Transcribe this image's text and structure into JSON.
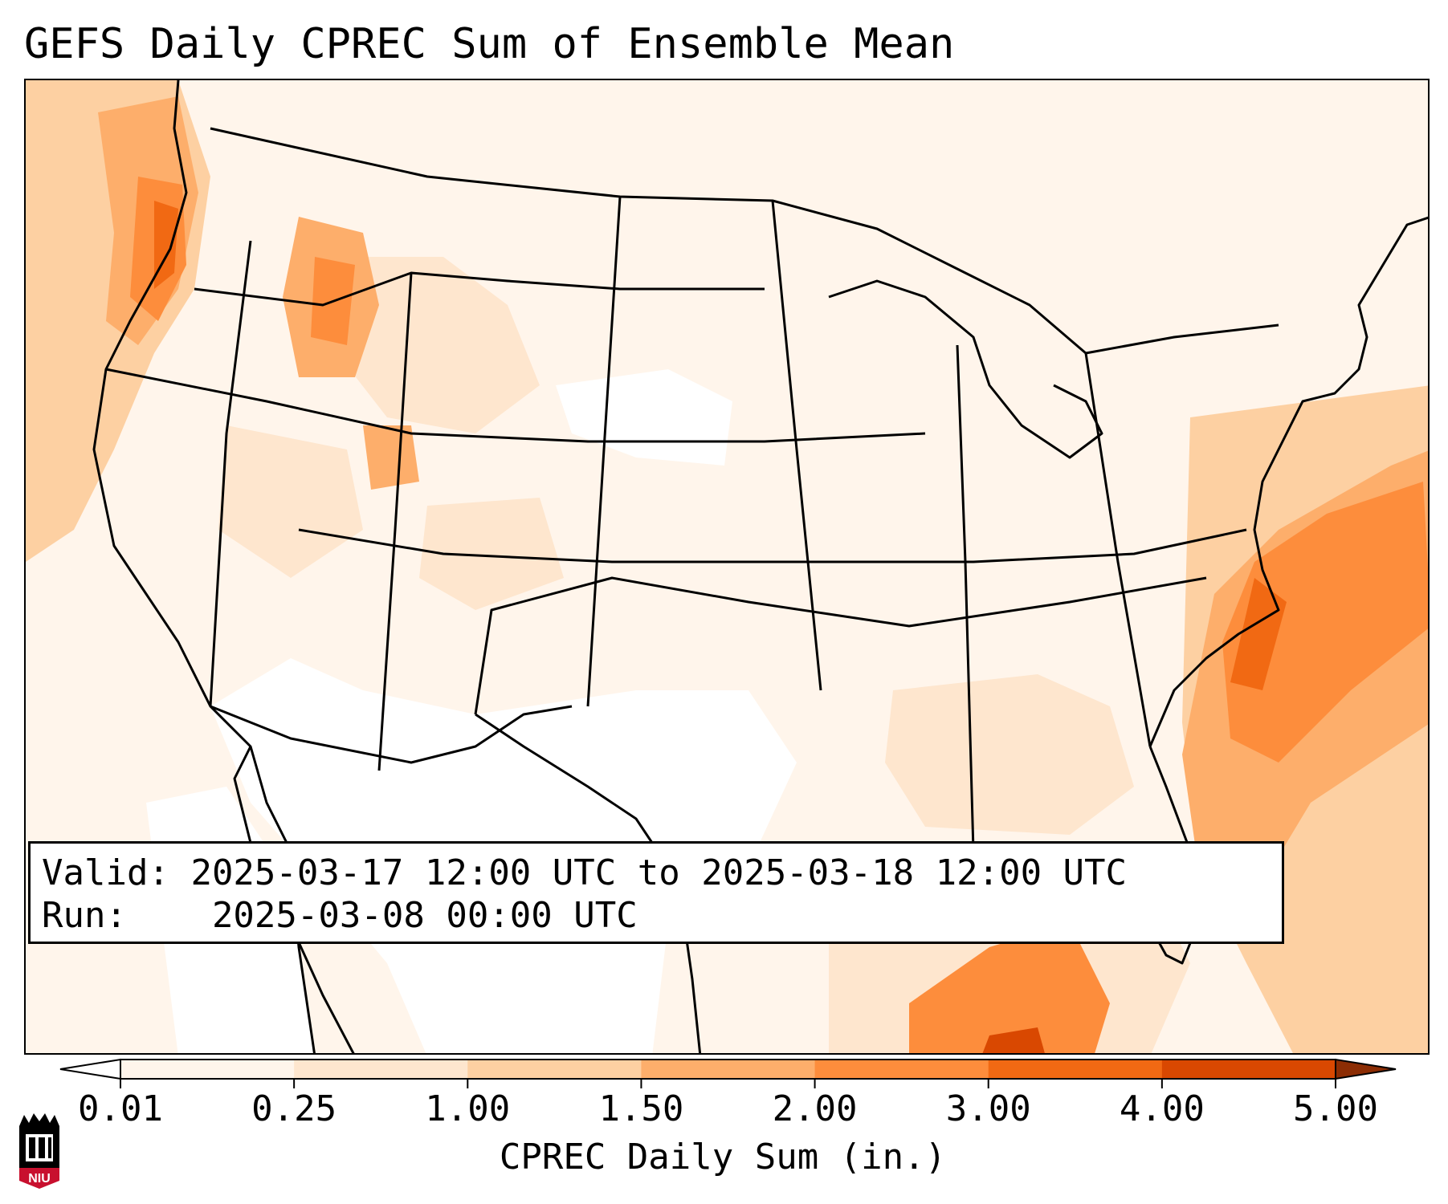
{
  "title": "GEFS Daily CPREC Sum of Ensemble Mean",
  "info": {
    "valid_label": "Valid:",
    "valid_value": "2025-03-17 12:00 UTC to 2025-03-18 12:00 UTC",
    "run_label": "Run:",
    "run_value": "2025-03-08 00:00 UTC"
  },
  "colorbar": {
    "label": "CPREC Daily Sum (in.)",
    "ticks": [
      "0.01",
      "0.25",
      "1.00",
      "1.50",
      "2.00",
      "3.00",
      "4.00",
      "5.00"
    ],
    "colors": [
      "#fff5eb",
      "#fee6ce",
      "#fdd0a2",
      "#fdae6b",
      "#fd8d3c",
      "#f16913",
      "#d94801"
    ],
    "under_color": "#ffffff",
    "over_color": "#8c2d04"
  },
  "logo": {
    "text": "NIU",
    "color": "#c8102e"
  }
}
